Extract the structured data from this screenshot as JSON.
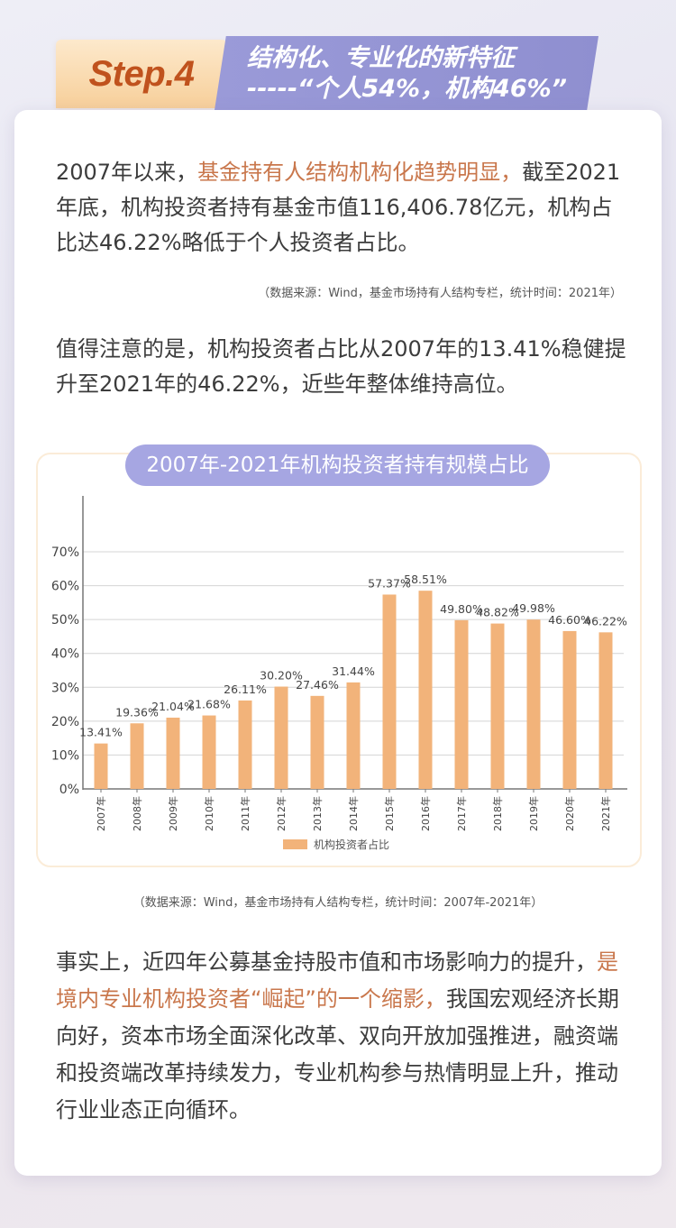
{
  "header": {
    "badge": "Step.4",
    "title_line1": "结构化、专业化的新特征",
    "title_line2": "-----“个人54%，机构46%”"
  },
  "intro": {
    "p1_a": "2007年以来，",
    "p1_hl": "基金持有人结构机构化趋势明显，",
    "p1_b": "截至2021年底，机构投资者持有基金市值116,406.78亿元，机构占比达46.22%略低于个人投资者占比。",
    "source1": "（数据来源：Wind，基金市场持有人结构专栏，统计时间：2021年）",
    "p2": "值得注意的是，机构投资者占比从2007年的13.41%稳健提升至2021年的46.22%，近些年整体维持高位。"
  },
  "chart_data": {
    "type": "bar",
    "title": "2007年-2021年机构投资者持有规模占比",
    "categories": [
      "2007年",
      "2008年",
      "2009年",
      "2010年",
      "2011年",
      "2012年",
      "2013年",
      "2014年",
      "2015年",
      "2016年",
      "2017年",
      "2018年",
      "2019年",
      "2020年",
      "2021年"
    ],
    "series": [
      {
        "name": "机构投资者占比",
        "values": [
          13.41,
          19.36,
          21.04,
          21.68,
          26.11,
          30.2,
          27.46,
          31.44,
          57.37,
          58.51,
          49.8,
          48.82,
          49.98,
          46.6,
          46.22
        ]
      }
    ],
    "data_labels": [
      "13.41%",
      "19.36%",
      "21.04%",
      "21.68%",
      "26.11%",
      "30.20%",
      "27.46%",
      "31.44%",
      "57.37%",
      "58.51%",
      "49.80%",
      "48.82%",
      "49.98%",
      "46.60%",
      "46.22%"
    ],
    "y_ticks": [
      "0%",
      "10%",
      "20%",
      "30%",
      "40%",
      "50%",
      "60%",
      "70%"
    ],
    "ylim": [
      0,
      70
    ],
    "legend": "机构投资者占比",
    "legend_position": "bottom",
    "grid": true,
    "bar_color": "#f2b37a"
  },
  "source2": "（数据来源：Wind，基金市场持有人结构专栏，统计时间：2007年-2021年）",
  "outro": {
    "p_a": "事实上，近四年公募基金持股市值和市场影响力的提升，",
    "p_hl": "是境内专业机构投资者“崛起”的一个缩影，",
    "p_b": "我国宏观经济长期向好，资本市场全面深化改革、双向开放加强推进，融资端和投资端改革持续发力，专业机构参与热情明显上升，推动行业业态正向循环。"
  }
}
